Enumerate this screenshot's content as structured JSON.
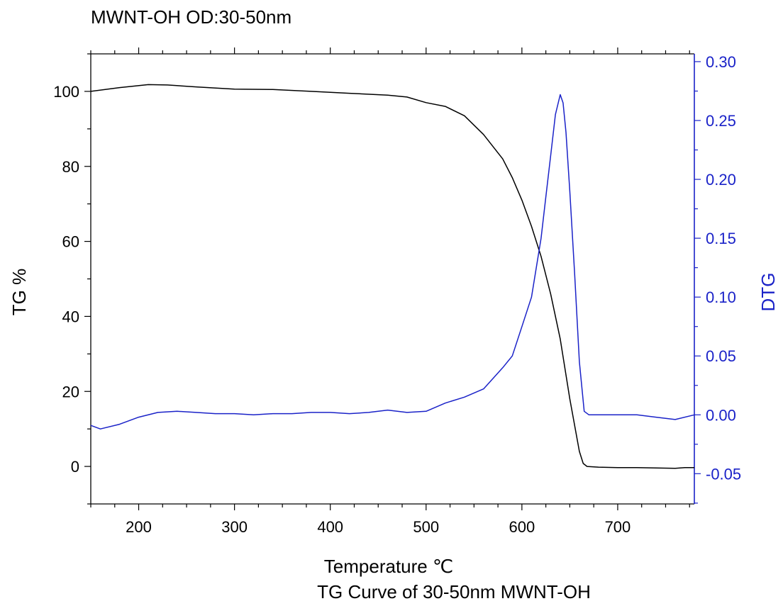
{
  "chart_data": {
    "type": "line",
    "title": "MWNT-OH  OD:30-50nm",
    "caption": "TG Curve of 30-50nm MWNT-OH",
    "xlabel": "Temperature ℃",
    "ylabel_left": "TG %",
    "ylabel_right": "DTG",
    "xlim": [
      150,
      780
    ],
    "ylim_left": [
      -10,
      110
    ],
    "ylim_right": [
      -0.0757,
      0.3066
    ],
    "x_ticks": [
      200,
      300,
      400,
      500,
      600,
      700
    ],
    "y_left_ticks": [
      0,
      20,
      40,
      60,
      80,
      100
    ],
    "y_right_ticks": [
      -0.05,
      0.0,
      0.05,
      0.1,
      0.15,
      0.2,
      0.25,
      0.3
    ],
    "y_right_tick_labels": [
      "-0.05",
      "0.00",
      "0.05",
      "0.10",
      "0.15",
      "0.20",
      "0.25",
      "0.30"
    ],
    "grid": false,
    "series": [
      {
        "axis": "left",
        "color": "#000000",
        "x": [
          150,
          180,
          210,
          230,
          260,
          300,
          340,
          380,
          420,
          460,
          480,
          500,
          520,
          540,
          560,
          580,
          590,
          600,
          610,
          620,
          630,
          640,
          650,
          660,
          664,
          668,
          680,
          700,
          720,
          740,
          760,
          770,
          780
        ],
        "y": [
          100,
          101,
          101.8,
          101.7,
          101.2,
          100.6,
          100.5,
          100,
          99.5,
          99,
          98.5,
          97,
          96,
          93.5,
          88.5,
          82,
          77,
          71,
          64,
          56,
          46,
          34,
          18,
          4,
          0.8,
          0,
          -0.2,
          -0.3,
          -0.3,
          -0.4,
          -0.5,
          -0.3,
          -0.3
        ]
      },
      {
        "axis": "right",
        "color": "#1a22c8",
        "x": [
          150,
          160,
          180,
          200,
          220,
          240,
          260,
          280,
          300,
          320,
          340,
          360,
          380,
          400,
          420,
          440,
          460,
          480,
          500,
          520,
          540,
          560,
          580,
          590,
          600,
          610,
          620,
          625,
          630,
          635,
          640,
          643,
          646,
          650,
          655,
          660,
          665,
          670,
          680,
          700,
          720,
          740,
          760,
          780
        ],
        "y": [
          -0.009,
          -0.012,
          -0.008,
          -0.002,
          0.002,
          0.003,
          0.002,
          0.001,
          0.001,
          0.0,
          0.001,
          0.001,
          0.002,
          0.002,
          0.001,
          0.002,
          0.004,
          0.002,
          0.003,
          0.01,
          0.015,
          0.022,
          0.04,
          0.05,
          0.075,
          0.1,
          0.15,
          0.185,
          0.22,
          0.255,
          0.272,
          0.265,
          0.24,
          0.19,
          0.12,
          0.045,
          0.003,
          0.0,
          0.0,
          0.0,
          0.0,
          -0.002,
          -0.004,
          0.0
        ]
      }
    ]
  }
}
